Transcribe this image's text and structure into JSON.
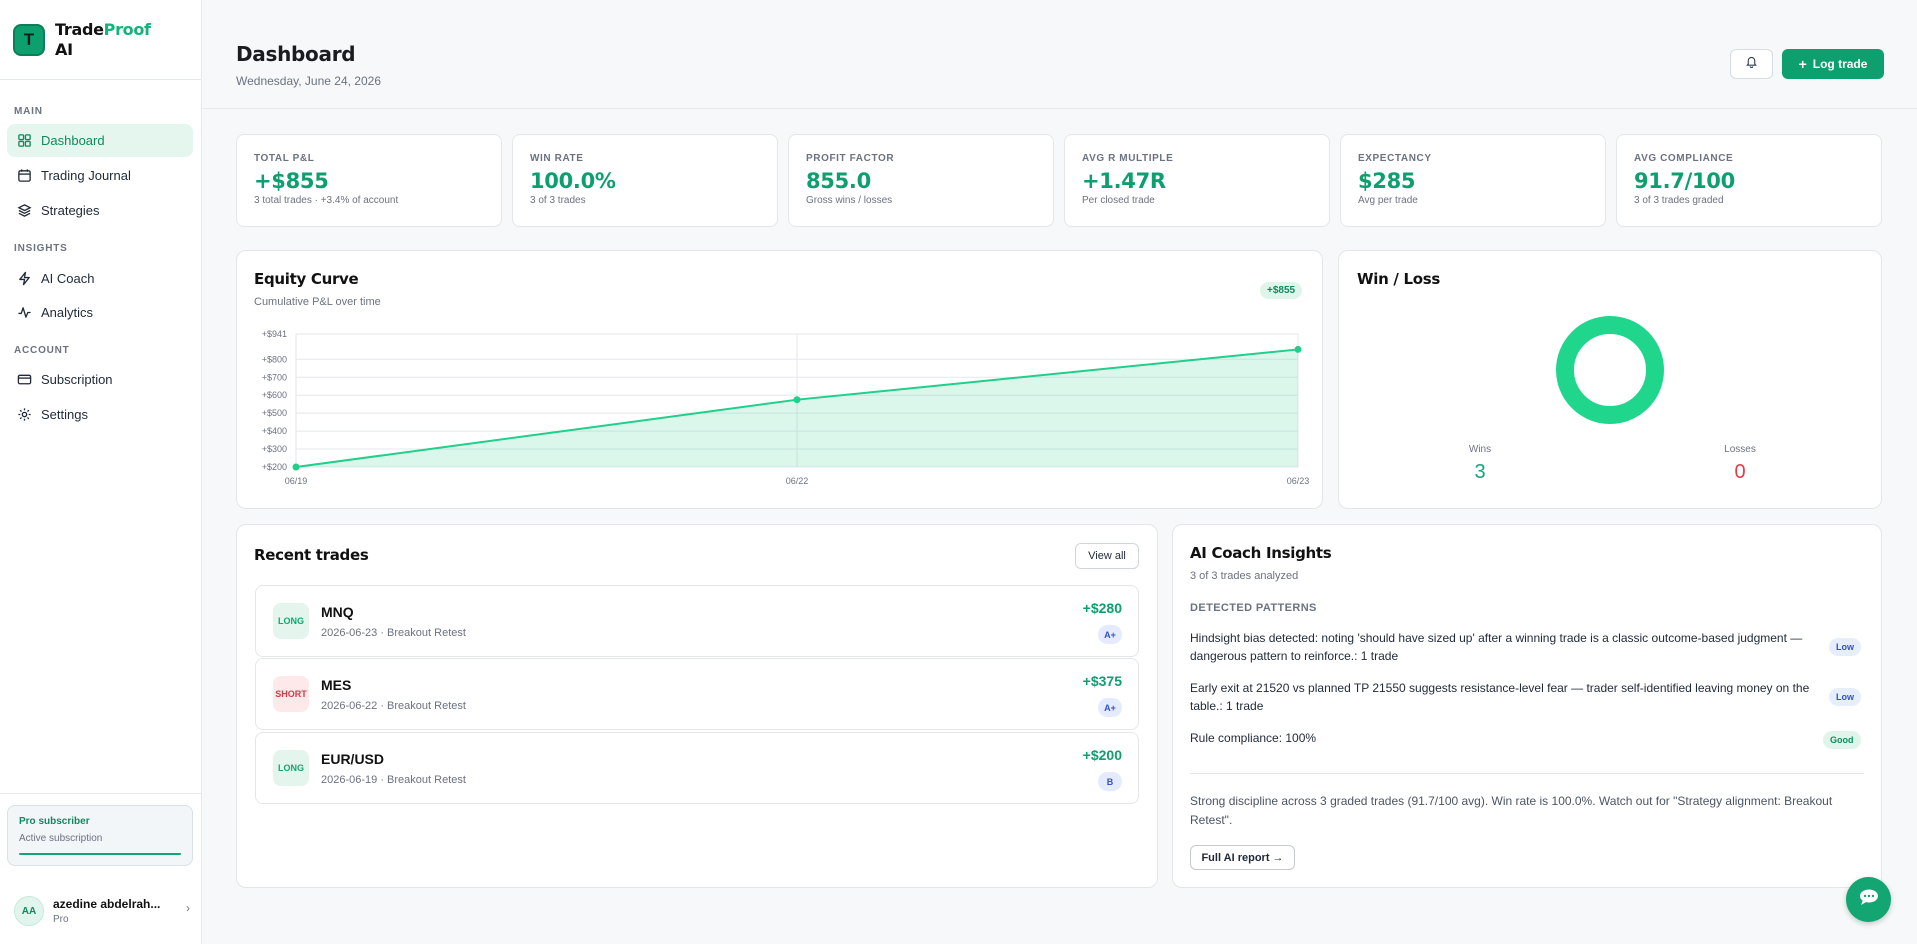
{
  "app": {
    "brand_part1": "Trade",
    "brand_part2": "Proof",
    "brand_part3": "AI",
    "logo_letter": "T"
  },
  "sidebar": {
    "sections": {
      "main": "MAIN",
      "insights": "INSIGHTS",
      "account": "ACCOUNT"
    },
    "items": [
      {
        "label": "Dashboard",
        "icon": "grid-icon",
        "active": true
      },
      {
        "label": "Trading Journal",
        "icon": "calendar-icon"
      },
      {
        "label": "Strategies",
        "icon": "layers-icon"
      },
      {
        "label": "AI Coach",
        "icon": "bolt-icon"
      },
      {
        "label": "Analytics",
        "icon": "activity-icon"
      },
      {
        "label": "Subscription",
        "icon": "credit-card-icon"
      },
      {
        "label": "Settings",
        "icon": "gear-icon"
      }
    ],
    "pro_box": {
      "title": "Pro subscriber",
      "subtitle": "Active subscription"
    },
    "user": {
      "initials": "AA",
      "name": "azedine abdelrah...",
      "plan": "Pro"
    }
  },
  "header": {
    "title": "Dashboard",
    "date": "Wednesday, June 24, 2026",
    "log_trade_label": "Log trade"
  },
  "stats": [
    {
      "label": "TOTAL P&L",
      "value": "+$855",
      "sub": "3 total trades · +3.4% of account"
    },
    {
      "label": "WIN RATE",
      "value": "100.0%",
      "sub": "3 of 3 trades"
    },
    {
      "label": "PROFIT FACTOR",
      "value": "855.0",
      "sub": "Gross wins / losses"
    },
    {
      "label": "AVG R MULTIPLE",
      "value": "+1.47R",
      "sub": "Per closed trade"
    },
    {
      "label": "EXPECTANCY",
      "value": "$285",
      "sub": "Avg per trade"
    },
    {
      "label": "AVG COMPLIANCE",
      "value": "91.7/100",
      "sub": "3 of 3 trades graded"
    }
  ],
  "equity": {
    "title": "Equity Curve",
    "subtitle": "Cumulative P&L over time",
    "badge": "+$855"
  },
  "chart_data": {
    "type": "area",
    "title": "Equity Curve",
    "x": [
      "06/19",
      "06/22",
      "06/23"
    ],
    "y": [
      200,
      575,
      855
    ],
    "yticks": [
      "+$941",
      "+$800",
      "+$700",
      "+$600",
      "+$500",
      "+$400",
      "+$300",
      "+$200"
    ],
    "ytick_values": [
      941,
      800,
      700,
      600,
      500,
      400,
      300,
      200
    ],
    "ylim": [
      200,
      941
    ],
    "grid": true,
    "color": "#1fcf8a"
  },
  "winloss": {
    "title": "Win / Loss",
    "wins_label": "Wins",
    "wins": "3",
    "losses_label": "Losses",
    "losses": "0",
    "win_color": "#1fd68c",
    "loss_color": "#e53b4b"
  },
  "recent_trades": {
    "title": "Recent trades",
    "view_all": "View all",
    "items": [
      {
        "side": "LONG",
        "symbol": "MNQ",
        "meta": "2026-06-23 · Breakout Retest",
        "pnl": "+$280",
        "grade": "A+"
      },
      {
        "side": "SHORT",
        "symbol": "MES",
        "meta": "2026-06-22 · Breakout Retest",
        "pnl": "+$375",
        "grade": "A+"
      },
      {
        "side": "LONG",
        "symbol": "EUR/USD",
        "meta": "2026-06-19 · Breakout Retest",
        "pnl": "+$200",
        "grade": "B"
      }
    ]
  },
  "coach": {
    "title": "AI Coach Insights",
    "subtitle": "3 of 3 trades analyzed",
    "patterns_label": "DETECTED PATTERNS",
    "patterns": [
      {
        "text": "Hindsight bias detected: noting 'should have sized up' after a winning trade is a classic outcome-based judgment — dangerous pattern to reinforce.: 1 trade",
        "tag": "Low"
      },
      {
        "text": "Early exit at 21520 vs planned TP 21550 suggests resistance-level fear — trader self-identified leaving money on the table.: 1 trade",
        "tag": "Low"
      },
      {
        "text": "Rule compliance: 100%",
        "tag": "Good"
      }
    ],
    "summary": "Strong discipline across 3 graded trades (91.7/100 avg). Win rate is 100.0%. Watch out for \"Strategy alignment: Breakout Retest\".",
    "full_report": "Full AI report →"
  }
}
